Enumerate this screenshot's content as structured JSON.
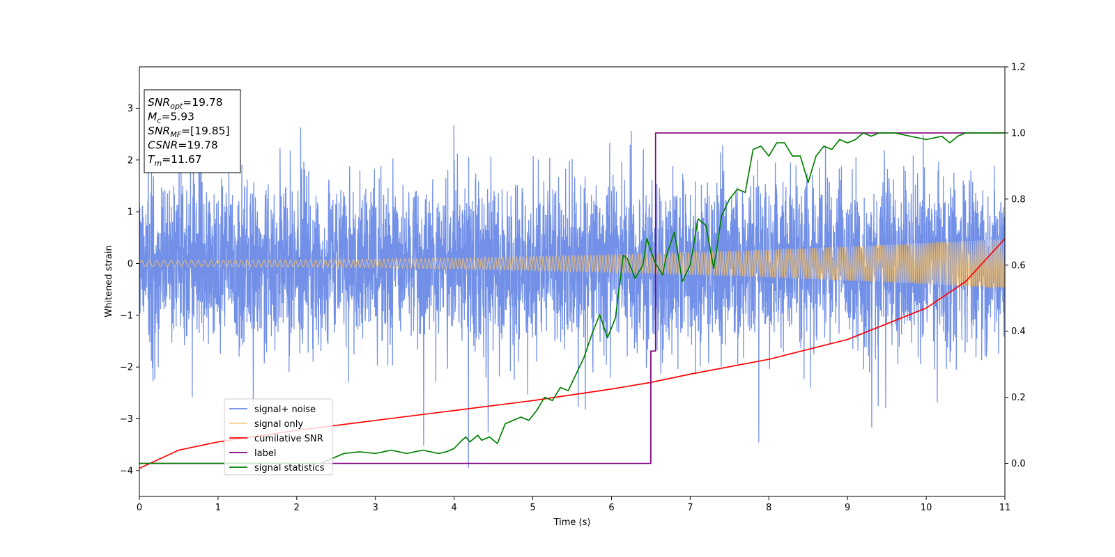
{
  "chart_data": {
    "type": "line",
    "title": "",
    "xlabel": "Time (s)",
    "ylabel": "Whitened strain",
    "xlim": [
      0,
      11
    ],
    "ylim": [
      -4.5,
      3.8
    ],
    "y2lim": [
      -0.1,
      1.2
    ],
    "x_ticks": [
      "0",
      "1",
      "2",
      "3",
      "4",
      "5",
      "6",
      "7",
      "8",
      "9",
      "10",
      "11"
    ],
    "y_ticks": [
      "3",
      "2",
      "1",
      "0",
      "−1",
      "−2",
      "−3",
      "−4"
    ],
    "y2_ticks": [
      "1.2",
      "1.0",
      "0.8",
      "0.6",
      "0.4",
      "0.2",
      "0.0"
    ],
    "grid": false,
    "legend_position": "lower-left",
    "annotation": {
      "lines": [
        {
          "main": "SNR",
          "sub": "opt",
          "rest": "=19.78"
        },
        {
          "main": "M",
          "sub": "c",
          "rest": "=5.93"
        },
        {
          "main": "SNR",
          "sub": "MF",
          "rest": "=[19.85]"
        },
        {
          "main": "CSNR",
          "sub": "",
          "rest": "=19.78"
        },
        {
          "main": "T",
          "sub": "m",
          "rest": "=11.67"
        }
      ]
    },
    "series": [
      {
        "name": "signal+ noise",
        "color": "#6a8ae6",
        "axis": "left",
        "kind": "noise",
        "envelope_sd": 0.8,
        "seed": 7
      },
      {
        "name": "signal only",
        "color": "#f5c06a",
        "axis": "left",
        "kind": "chirp",
        "amplitude_start": 0.06,
        "amplitude_end": 0.48,
        "freq_start": 10,
        "freq_end": 40
      },
      {
        "name": "cumilative SNR",
        "color": "#ff0000",
        "axis": "right",
        "x": [
          0,
          0.5,
          1,
          2,
          3,
          4,
          5,
          6,
          6.5,
          7,
          8,
          9,
          10,
          10.5,
          11
        ],
        "values": [
          -0.015,
          0.04,
          0.065,
          0.1,
          0.13,
          0.16,
          0.19,
          0.225,
          0.245,
          0.27,
          0.315,
          0.375,
          0.47,
          0.55,
          0.68
        ]
      },
      {
        "name": "label",
        "color": "#800080",
        "axis": "right",
        "x": [
          0,
          6.5,
          6.5,
          6.52,
          6.56,
          6.56,
          11
        ],
        "values": [
          0.0,
          0.0,
          0.34,
          0.34,
          0.34,
          1.0,
          1.0
        ]
      },
      {
        "name": "signal statistics",
        "color": "#008000",
        "axis": "right",
        "x": [
          0,
          2.3,
          2.4,
          2.5,
          2.6,
          2.8,
          3.0,
          3.2,
          3.4,
          3.6,
          3.8,
          3.9,
          4.0,
          4.1,
          4.15,
          4.2,
          4.3,
          4.35,
          4.45,
          4.55,
          4.65,
          4.75,
          4.85,
          4.95,
          5.05,
          5.15,
          5.25,
          5.35,
          5.45,
          5.55,
          5.65,
          5.75,
          5.85,
          5.95,
          6.05,
          6.15,
          6.2,
          6.3,
          6.4,
          6.45,
          6.55,
          6.65,
          6.7,
          6.8,
          6.9,
          7.0,
          7.1,
          7.2,
          7.3,
          7.4,
          7.5,
          7.6,
          7.7,
          7.8,
          7.9,
          8.0,
          8.1,
          8.2,
          8.3,
          8.4,
          8.5,
          8.6,
          8.7,
          8.8,
          8.9,
          9.0,
          9.1,
          9.2,
          9.3,
          9.4,
          9.6,
          9.8,
          10.0,
          10.2,
          10.3,
          10.4,
          10.5,
          10.6,
          10.8,
          11.0
        ],
        "values": [
          0.0,
          0.0,
          0.01,
          0.02,
          0.03,
          0.035,
          0.03,
          0.04,
          0.03,
          0.04,
          0.03,
          0.035,
          0.045,
          0.07,
          0.08,
          0.065,
          0.085,
          0.07,
          0.08,
          0.06,
          0.12,
          0.13,
          0.14,
          0.13,
          0.16,
          0.2,
          0.19,
          0.23,
          0.22,
          0.27,
          0.32,
          0.39,
          0.45,
          0.38,
          0.44,
          0.63,
          0.62,
          0.56,
          0.6,
          0.68,
          0.61,
          0.57,
          0.63,
          0.7,
          0.55,
          0.6,
          0.74,
          0.72,
          0.59,
          0.75,
          0.8,
          0.83,
          0.82,
          0.95,
          0.96,
          0.93,
          0.97,
          0.97,
          0.93,
          0.93,
          0.85,
          0.93,
          0.96,
          0.95,
          0.98,
          0.97,
          0.98,
          1.0,
          0.99,
          1.0,
          1.0,
          0.99,
          0.98,
          0.99,
          0.97,
          0.99,
          1.0,
          1.0,
          1.0,
          1.0
        ]
      }
    ]
  }
}
